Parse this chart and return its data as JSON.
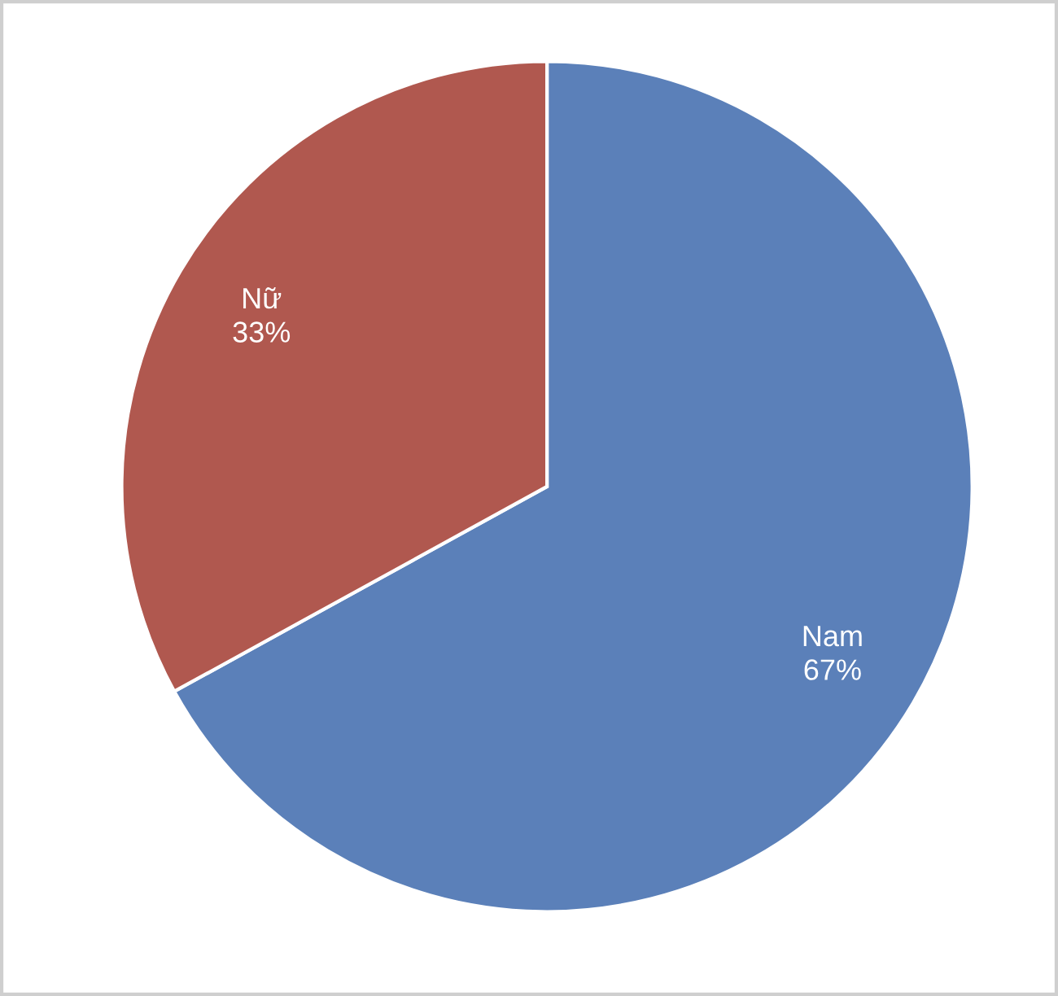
{
  "chart_data": {
    "type": "pie",
    "categories": [
      "Nam",
      "Nữ"
    ],
    "values": [
      67,
      33
    ],
    "colors": [
      "#5b80b9",
      "#b0584f"
    ],
    "value_labels": [
      "67%",
      "33%"
    ],
    "legend": false
  }
}
